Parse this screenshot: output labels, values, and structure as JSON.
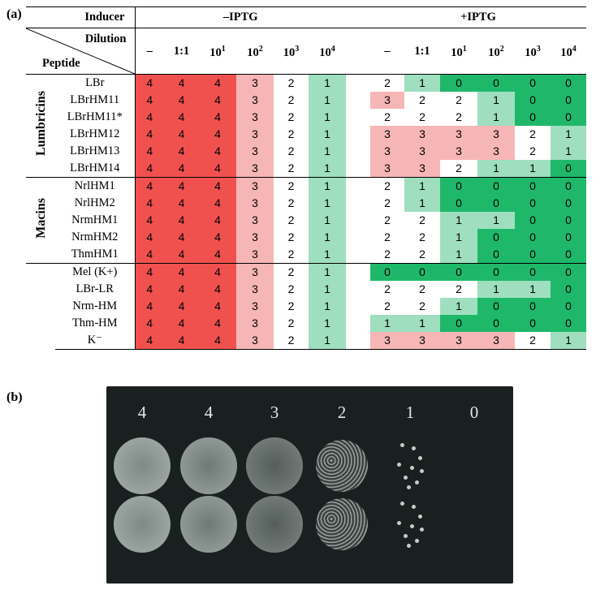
{
  "panel_a_label": "(a)",
  "panel_b_label": "(b)",
  "header": {
    "inducer": "Inducer",
    "dilution": "Dilution",
    "peptide": "Peptide",
    "minus_iptg": "–IPTG",
    "plus_iptg": "+IPTG",
    "dilutions": [
      "–",
      "1:1",
      "10",
      "10",
      "10",
      "10"
    ],
    "dilution_exps": [
      "",
      "",
      "1",
      "2",
      "3",
      "4"
    ]
  },
  "groups": [
    {
      "name": "Lumbricins",
      "rows": [
        {
          "peptide": "LBr",
          "minus": [
            4,
            4,
            4,
            3,
            2,
            1
          ],
          "plus": [
            2,
            1,
            0,
            0,
            0,
            0
          ]
        },
        {
          "peptide": "LBrHM11",
          "minus": [
            4,
            4,
            4,
            3,
            2,
            1
          ],
          "plus": [
            3,
            2,
            2,
            1,
            0,
            0
          ]
        },
        {
          "peptide": "LBrHM11*",
          "minus": [
            4,
            4,
            4,
            3,
            2,
            1
          ],
          "plus": [
            2,
            2,
            2,
            1,
            0,
            0
          ]
        },
        {
          "peptide": "LBrHM12",
          "minus": [
            4,
            4,
            4,
            3,
            2,
            1
          ],
          "plus": [
            3,
            3,
            3,
            3,
            2,
            1
          ]
        },
        {
          "peptide": "LBrHM13",
          "minus": [
            4,
            4,
            4,
            3,
            2,
            1
          ],
          "plus": [
            3,
            3,
            3,
            3,
            2,
            1
          ]
        },
        {
          "peptide": "LBrHM14",
          "minus": [
            4,
            4,
            4,
            3,
            2,
            1
          ],
          "plus": [
            3,
            3,
            2,
            1,
            1,
            0
          ]
        }
      ]
    },
    {
      "name": "Macins",
      "rows": [
        {
          "peptide": "NrlHM1",
          "minus": [
            4,
            4,
            4,
            3,
            2,
            1
          ],
          "plus": [
            2,
            1,
            0,
            0,
            0,
            0
          ]
        },
        {
          "peptide": "NrlHM2",
          "minus": [
            4,
            4,
            4,
            3,
            2,
            1
          ],
          "plus": [
            2,
            1,
            0,
            0,
            0,
            0
          ]
        },
        {
          "peptide": "NrmHM1",
          "minus": [
            4,
            4,
            4,
            3,
            2,
            1
          ],
          "plus": [
            2,
            2,
            1,
            1,
            0,
            0
          ]
        },
        {
          "peptide": "NrmHM2",
          "minus": [
            4,
            4,
            4,
            3,
            2,
            1
          ],
          "plus": [
            2,
            2,
            1,
            0,
            0,
            0
          ]
        },
        {
          "peptide": "ThmHM1",
          "minus": [
            4,
            4,
            4,
            3,
            2,
            1
          ],
          "plus": [
            2,
            2,
            1,
            0,
            0,
            0
          ]
        }
      ]
    },
    {
      "name": "",
      "rows": [
        {
          "peptide": "Mel (K+)",
          "minus": [
            4,
            4,
            4,
            3,
            2,
            1
          ],
          "plus": [
            0,
            0,
            0,
            0,
            0,
            0
          ]
        },
        {
          "peptide": "LBr-LR",
          "minus": [
            4,
            4,
            4,
            3,
            2,
            1
          ],
          "plus": [
            2,
            2,
            2,
            1,
            1,
            0
          ]
        },
        {
          "peptide": "Nrm-HM",
          "minus": [
            4,
            4,
            4,
            3,
            2,
            1
          ],
          "plus": [
            2,
            2,
            1,
            0,
            0,
            0
          ]
        },
        {
          "peptide": "Thm-HM",
          "minus": [
            4,
            4,
            4,
            3,
            2,
            1
          ],
          "plus": [
            1,
            1,
            0,
            0,
            0,
            0
          ]
        },
        {
          "peptide": "K⁻",
          "minus": [
            4,
            4,
            4,
            3,
            2,
            1
          ],
          "plus": [
            3,
            3,
            3,
            3,
            2,
            1
          ]
        }
      ]
    }
  ],
  "colors": {
    "4": "#f0514f",
    "3": "#f7b6b6",
    "2": "#ffffff",
    "1": "#9fdfbf",
    "0": "#1fb86a"
  },
  "plate": {
    "labels": [
      "4",
      "4",
      "3",
      "2",
      "1",
      "0"
    ]
  }
}
